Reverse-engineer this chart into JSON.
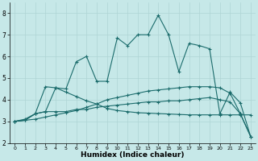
{
  "xlabel": "Humidex (Indice chaleur)",
  "xlim": [
    -0.5,
    23.5
  ],
  "ylim": [
    2,
    8.5
  ],
  "yticks": [
    2,
    3,
    4,
    5,
    6,
    7,
    8
  ],
  "xticks": [
    0,
    1,
    2,
    3,
    4,
    5,
    6,
    7,
    8,
    9,
    10,
    11,
    12,
    13,
    14,
    15,
    16,
    17,
    18,
    19,
    20,
    21,
    22,
    23
  ],
  "bg_color": "#c6e8e8",
  "grid_color": "#aed4d4",
  "line_color": "#1a6b6b",
  "lines": [
    {
      "x": [
        0,
        1,
        2,
        3,
        4,
        5,
        6,
        7,
        8,
        9,
        10,
        11,
        12,
        13,
        14,
        15,
        16,
        17,
        18,
        19,
        20,
        21,
        22,
        23
      ],
      "y": [
        3.0,
        3.05,
        3.35,
        3.45,
        4.55,
        4.5,
        5.75,
        6.0,
        4.85,
        4.85,
        6.85,
        6.5,
        7.0,
        7.0,
        7.9,
        7.0,
        5.3,
        6.6,
        6.5,
        6.35,
        3.35,
        4.35,
        3.85,
        2.3
      ]
    },
    {
      "x": [
        0,
        1,
        2,
        3,
        4,
        5,
        6,
        7,
        8,
        9,
        10,
        11,
        12,
        13,
        14,
        15,
        16,
        17,
        18,
        19,
        20,
        21,
        22,
        23
      ],
      "y": [
        3.0,
        3.1,
        3.35,
        4.6,
        4.55,
        4.35,
        4.15,
        3.95,
        3.8,
        3.6,
        3.5,
        3.45,
        3.4,
        3.38,
        3.36,
        3.34,
        3.32,
        3.3,
        3.3,
        3.3,
        3.3,
        3.3,
        3.3,
        3.3
      ]
    },
    {
      "x": [
        0,
        1,
        2,
        3,
        4,
        5,
        6,
        7,
        8,
        9,
        10,
        11,
        12,
        13,
        14,
        15,
        16,
        17,
        18,
        19,
        20,
        21,
        22,
        23
      ],
      "y": [
        3.0,
        3.05,
        3.1,
        3.2,
        3.3,
        3.4,
        3.5,
        3.65,
        3.8,
        4.0,
        4.1,
        4.2,
        4.3,
        4.4,
        4.45,
        4.5,
        4.55,
        4.6,
        4.6,
        4.6,
        4.55,
        4.3,
        3.35,
        2.3
      ]
    },
    {
      "x": [
        0,
        1,
        2,
        3,
        4,
        5,
        6,
        7,
        8,
        9,
        10,
        11,
        12,
        13,
        14,
        15,
        16,
        17,
        18,
        19,
        20,
        21,
        22,
        23
      ],
      "y": [
        3.0,
        3.05,
        3.35,
        3.45,
        3.45,
        3.45,
        3.55,
        3.55,
        3.65,
        3.7,
        3.75,
        3.8,
        3.85,
        3.9,
        3.9,
        3.95,
        3.95,
        4.0,
        4.05,
        4.1,
        4.0,
        3.9,
        3.35,
        2.3
      ]
    }
  ]
}
